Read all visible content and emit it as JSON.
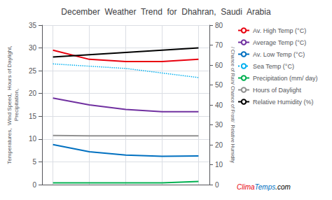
{
  "chart_data": {
    "type": "line",
    "title": "December  Weather  Trend  for  Dhahran,  Saudi  Arabia",
    "x": [
      1,
      2,
      3,
      4,
      5
    ],
    "xlim": [
      0.7,
      5.3
    ],
    "xticks": [
      1,
      2,
      3,
      4,
      5
    ],
    "ylim": [
      0,
      35
    ],
    "yticks": [
      0,
      5,
      10,
      15,
      20,
      25,
      30,
      35
    ],
    "y2lim": [
      0,
      80
    ],
    "y2ticks": [
      0,
      10,
      20,
      30,
      40,
      50,
      60,
      70,
      80
    ],
    "ylabel": "Temperatures,  Wind Speed,  Hours of Daylight,\nPrecipitation,",
    "y2label": "/ Chance of Rain/ Chance of Frost/  Relative Humidity",
    "grid": true,
    "legend": "right",
    "tick_labels": "y",
    "series": [
      {
        "name": "Av. High Temp (°C)",
        "color": "#e8000e",
        "line_style": "solid",
        "axis": "y",
        "values": [
          29.5,
          27.5,
          27.0,
          27.0,
          27.5
        ]
      },
      {
        "name": "Average Temp (°C)",
        "color": "#7030a0",
        "line_style": "solid",
        "axis": "y",
        "values": [
          19.0,
          17.5,
          16.5,
          16.0,
          16.0
        ]
      },
      {
        "name": "Av. Low Temp (°C)",
        "color": "#0070c0",
        "line_style": "solid",
        "axis": "y",
        "values": [
          8.8,
          7.2,
          6.5,
          6.2,
          6.3
        ]
      },
      {
        "name": "Sea Temp (°C)",
        "color": "#00b0f0",
        "line_style": "dotted",
        "axis": "y",
        "values": [
          26.5,
          26.0,
          25.5,
          24.5,
          23.5
        ]
      },
      {
        "name": "Precipitation (mm/ day)",
        "color": "#00b050",
        "line_style": "solid",
        "axis": "y",
        "values": [
          0.4,
          0.4,
          0.4,
          0.4,
          0.7
        ]
      },
      {
        "name": "Hours of Daylight",
        "color": "#909090",
        "line_style": "solid",
        "axis": "y",
        "values": [
          10.8,
          10.7,
          10.7,
          10.7,
          10.7
        ]
      },
      {
        "name": "Relative Humidity (%)",
        "color": "#000000",
        "line_style": "solid",
        "axis": "y",
        "values": [
          28.0,
          28.5,
          29.0,
          29.5,
          30.0
        ]
      }
    ],
    "annotations": [
      {
        "text": "Clima",
        "color": "#e8000e"
      },
      {
        "text": "Temps",
        "color": "#0070c0"
      },
      {
        "text": ".com",
        "color": "#000000"
      }
    ]
  }
}
